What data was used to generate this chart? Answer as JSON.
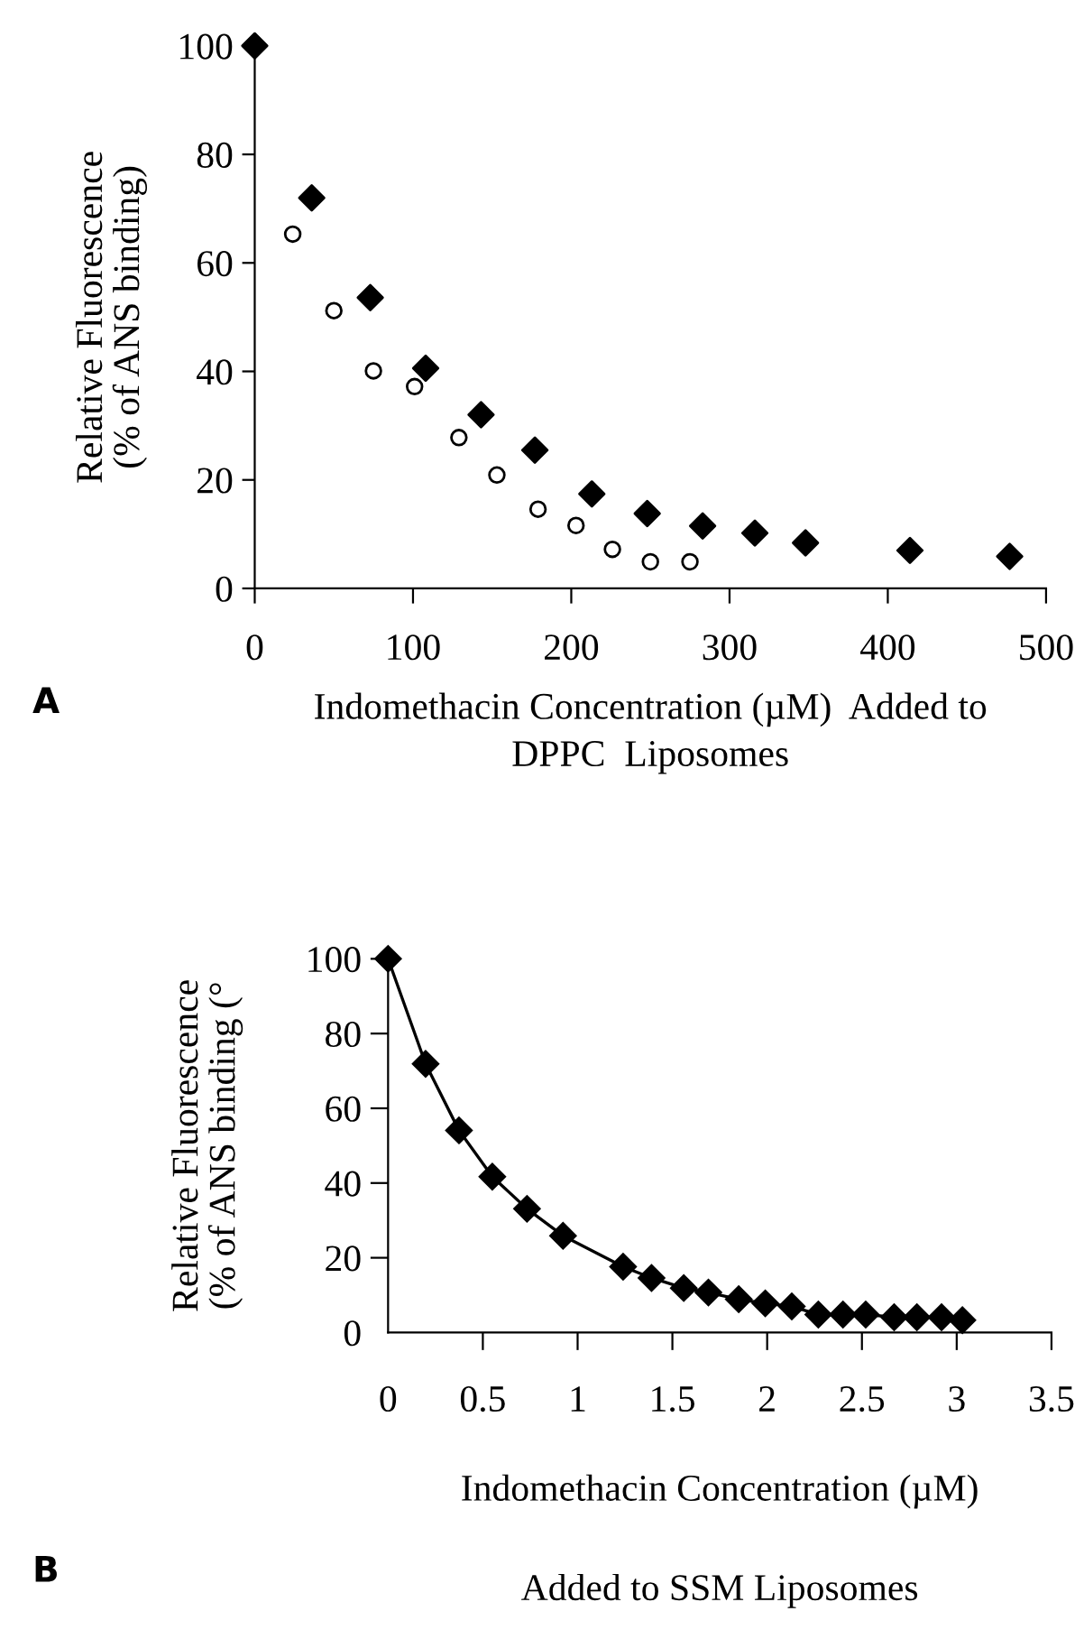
{
  "chart_data": [
    {
      "type": "scatter",
      "ylabel": "Relative Fluorescence\n(% of ANS binding)",
      "xlabel": "Indomethacin Concentration (µM)  Added to\nDPPC  Liposomes",
      "annotations": [
        "A"
      ],
      "xlim": [
        0,
        500
      ],
      "xticks": [
        0,
        100,
        200,
        300,
        400,
        500
      ],
      "ylim": [
        0,
        100
      ],
      "yticks": [
        0,
        20,
        40,
        60,
        80,
        100
      ],
      "grid": false,
      "series": [
        {
          "color": "#000000",
          "marker": "diamond",
          "x": [
            0,
            36,
            73,
            108,
            143,
            177,
            213,
            248,
            283,
            316,
            348,
            414,
            477
          ],
          "values": [
            100,
            72,
            53.6,
            40.6,
            32,
            25.5,
            17.4,
            13.8,
            11.5,
            10.2,
            8.4,
            7.0,
            5.9
          ]
        },
        {
          "color": "#000000",
          "marker": "circle",
          "x": [
            24,
            50,
            75,
            101,
            129,
            153,
            179,
            203,
            226,
            250,
            275
          ],
          "values": [
            65.3,
            51.2,
            40.1,
            37.2,
            27.8,
            20.9,
            14.6,
            11.6,
            7.2,
            4.9,
            4.9
          ]
        }
      ]
    },
    {
      "type": "line",
      "ylabel": "Relative Fluorescence\n(% of ANS binding (°",
      "xlabel": "Indomethacin Concentration (µM)\n\nAdded to SSM Liposomes",
      "annotations": [
        "B"
      ],
      "xlim": [
        0,
        3.5
      ],
      "xticks": [
        0,
        0.5,
        1,
        1.5,
        2,
        2.5,
        3,
        3.5
      ],
      "ylim": [
        0,
        100
      ],
      "yticks": [
        0,
        20,
        40,
        60,
        80,
        100
      ],
      "grid": false,
      "marker": "diamond",
      "line_style": "solid",
      "series": [
        {
          "color": "#000000",
          "x": [
            0,
            0.198,
            0.374,
            0.55,
            0.733,
            0.923,
            1.24,
            1.39,
            1.56,
            1.69,
            1.85,
            1.99,
            2.13,
            2.27,
            2.4,
            2.52,
            2.67,
            2.79,
            2.92,
            3.03
          ],
          "values": [
            100,
            71.9,
            54.1,
            41.7,
            33.1,
            25.9,
            17.6,
            14.6,
            11.9,
            10.7,
            8.9,
            7.8,
            7.0,
            4.8,
            4.8,
            4.8,
            4.1,
            4.1,
            4.1,
            3.3
          ]
        }
      ]
    }
  ]
}
